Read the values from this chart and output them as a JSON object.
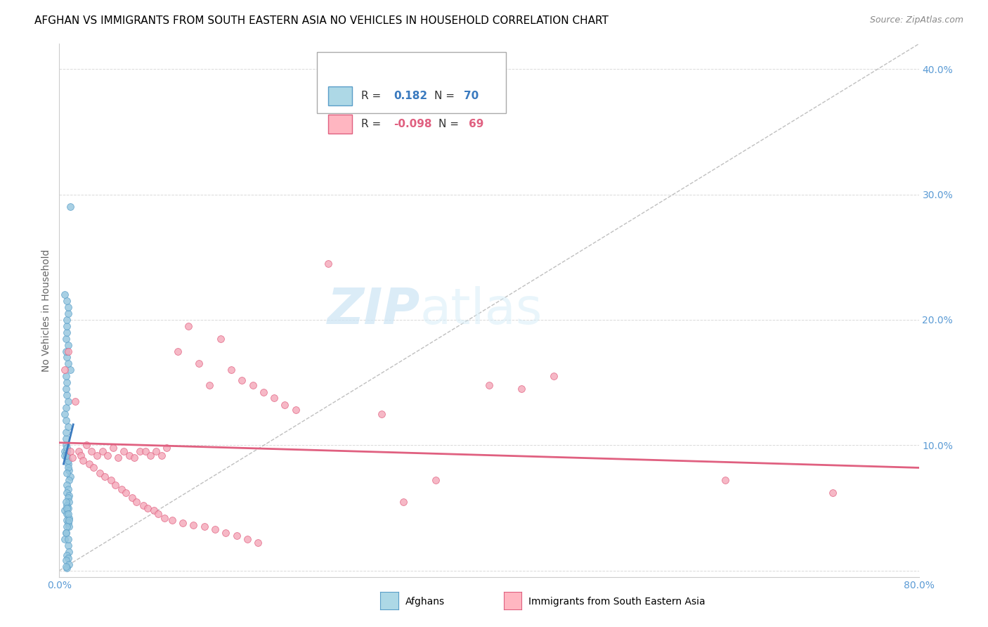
{
  "title": "AFGHAN VS IMMIGRANTS FROM SOUTH EASTERN ASIA NO VEHICLES IN HOUSEHOLD CORRELATION CHART",
  "source": "Source: ZipAtlas.com",
  "ylabel": "No Vehicles in Household",
  "xlim": [
    0.0,
    0.8
  ],
  "ylim": [
    -0.005,
    0.42
  ],
  "xticks": [
    0.0,
    0.1,
    0.2,
    0.3,
    0.4,
    0.5,
    0.6,
    0.7,
    0.8
  ],
  "yticks": [
    0.0,
    0.1,
    0.2,
    0.3,
    0.4
  ],
  "blue_color": "#92c5de",
  "blue_edge": "#5a9ec8",
  "pink_color": "#f4a6b8",
  "pink_edge": "#e06080",
  "blue_line_color": "#3a7abf",
  "pink_line_color": "#e06080",
  "axis_tick_color": "#5b9bd5",
  "watermark_color": "#cce4f5",
  "blue_scatter_x": [
    0.005,
    0.007,
    0.008,
    0.006,
    0.009,
    0.01,
    0.007,
    0.006,
    0.008,
    0.005,
    0.007,
    0.008,
    0.006,
    0.007,
    0.009,
    0.008,
    0.006,
    0.007,
    0.005,
    0.008,
    0.006,
    0.007,
    0.008,
    0.009,
    0.007,
    0.006,
    0.008,
    0.007,
    0.009,
    0.01,
    0.006,
    0.007,
    0.008,
    0.005,
    0.007,
    0.008,
    0.006,
    0.007,
    0.009,
    0.008,
    0.006,
    0.007,
    0.008,
    0.009,
    0.007,
    0.006,
    0.005,
    0.007,
    0.008,
    0.009,
    0.007,
    0.008,
    0.006,
    0.007,
    0.008,
    0.009,
    0.007,
    0.006,
    0.008,
    0.007,
    0.005,
    0.006,
    0.007,
    0.008,
    0.009,
    0.007,
    0.006,
    0.008,
    0.007,
    0.01
  ],
  "blue_scatter_y": [
    0.095,
    0.09,
    0.085,
    0.1,
    0.08,
    0.075,
    0.095,
    0.105,
    0.088,
    0.092,
    0.098,
    0.082,
    0.11,
    0.078,
    0.072,
    0.115,
    0.12,
    0.068,
    0.125,
    0.065,
    0.13,
    0.062,
    0.135,
    0.06,
    0.14,
    0.145,
    0.058,
    0.15,
    0.055,
    0.16,
    0.155,
    0.052,
    0.165,
    0.048,
    0.17,
    0.05,
    0.175,
    0.045,
    0.042,
    0.18,
    0.185,
    0.04,
    0.038,
    0.035,
    0.19,
    0.03,
    0.025,
    0.195,
    0.02,
    0.015,
    0.012,
    0.01,
    0.008,
    0.2,
    0.205,
    0.005,
    0.002,
    0.003,
    0.21,
    0.215,
    0.22,
    0.055,
    0.05,
    0.045,
    0.04,
    0.035,
    0.03,
    0.025,
    0.092,
    0.29
  ],
  "pink_scatter_x": [
    0.005,
    0.008,
    0.01,
    0.012,
    0.015,
    0.018,
    0.02,
    0.022,
    0.025,
    0.028,
    0.03,
    0.032,
    0.035,
    0.038,
    0.04,
    0.042,
    0.045,
    0.048,
    0.05,
    0.052,
    0.055,
    0.058,
    0.06,
    0.062,
    0.065,
    0.068,
    0.07,
    0.072,
    0.075,
    0.078,
    0.08,
    0.082,
    0.085,
    0.088,
    0.09,
    0.092,
    0.095,
    0.098,
    0.1,
    0.105,
    0.11,
    0.115,
    0.12,
    0.125,
    0.13,
    0.135,
    0.14,
    0.145,
    0.15,
    0.155,
    0.16,
    0.165,
    0.17,
    0.175,
    0.18,
    0.185,
    0.19,
    0.2,
    0.21,
    0.22,
    0.25,
    0.3,
    0.32,
    0.35,
    0.4,
    0.43,
    0.46,
    0.62,
    0.72
  ],
  "pink_scatter_y": [
    0.16,
    0.175,
    0.095,
    0.09,
    0.135,
    0.095,
    0.092,
    0.088,
    0.1,
    0.085,
    0.095,
    0.082,
    0.092,
    0.078,
    0.095,
    0.075,
    0.092,
    0.072,
    0.098,
    0.068,
    0.09,
    0.065,
    0.095,
    0.062,
    0.092,
    0.058,
    0.09,
    0.055,
    0.095,
    0.052,
    0.095,
    0.05,
    0.092,
    0.048,
    0.095,
    0.045,
    0.092,
    0.042,
    0.098,
    0.04,
    0.175,
    0.038,
    0.195,
    0.036,
    0.165,
    0.035,
    0.148,
    0.033,
    0.185,
    0.03,
    0.16,
    0.028,
    0.152,
    0.025,
    0.148,
    0.022,
    0.142,
    0.138,
    0.132,
    0.128,
    0.245,
    0.125,
    0.055,
    0.072,
    0.148,
    0.145,
    0.155,
    0.072,
    0.062
  ],
  "blue_line_x": [
    0.004,
    0.013
  ],
  "blue_line_y_start": 0.085,
  "blue_line_slope": 3.5,
  "pink_line_x": [
    0.0,
    0.8
  ],
  "pink_line_y": [
    0.102,
    0.082
  ],
  "dashed_line_x": [
    0.0,
    0.8
  ],
  "dashed_line_y": [
    0.0,
    0.42
  ]
}
